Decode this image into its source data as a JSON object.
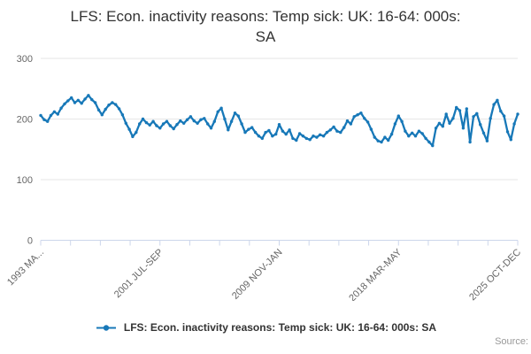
{
  "chart": {
    "title": "LFS: Econ. inactivity reasons: Temp sick: UK: 16-64: 000s: SA",
    "title_line1": "LFS: Econ. inactivity reasons: Temp sick: UK: 16-64: 000s:",
    "title_line2": "SA"
  },
  "legend": {
    "label": "LFS: Econ. inactivity reasons: Temp sick: UK: 16-64: 000s: SA"
  },
  "footer": {
    "source_label": "Source:"
  },
  "colors": {
    "series": "#1778b8",
    "grid": "#e6e6e6",
    "axis": "#ccd6eb",
    "tick_label": "#666666",
    "title": "#333333",
    "legend_text": "#333333",
    "source": "#999999",
    "background": "#ffffff"
  },
  "chart_data": {
    "type": "line",
    "title": "LFS: Econ. inactivity reasons: Temp sick: UK: 16-64: 000s: SA",
    "xlabel": "",
    "ylabel": "",
    "ylim": [
      0,
      300
    ],
    "y_ticks": [
      0,
      100,
      200,
      300
    ],
    "grid": "horizontal",
    "legend_position": "bottom-center",
    "x_minor_tick_count": 17,
    "x_tick_label_positions": [
      0,
      4,
      8,
      12,
      16
    ],
    "x_tick_labels": [
      "1993 MA...",
      "2001 JUL-SEP",
      "2009 NOV-JAN",
      "2018 MAR-MAY",
      "2025 OCT-DEC"
    ],
    "series": [
      {
        "name": "LFS: Econ. inactivity reasons: Temp sick: UK: 16-64: 000s: SA",
        "color": "#1778b8",
        "values": [
          206,
          199,
          196,
          206,
          212,
          208,
          218,
          225,
          230,
          235,
          227,
          231,
          226,
          233,
          239,
          232,
          227,
          215,
          207,
          216,
          223,
          227,
          224,
          217,
          207,
          193,
          183,
          171,
          178,
          192,
          200,
          194,
          190,
          196,
          189,
          185,
          192,
          196,
          189,
          184,
          191,
          197,
          193,
          199,
          204,
          197,
          193,
          199,
          201,
          192,
          185,
          196,
          212,
          218,
          200,
          182,
          196,
          210,
          205,
          192,
          178,
          183,
          186,
          178,
          172,
          168,
          178,
          181,
          172,
          175,
          191,
          180,
          175,
          182,
          168,
          165,
          176,
          172,
          168,
          166,
          172,
          170,
          174,
          172,
          178,
          182,
          187,
          180,
          178,
          186,
          197,
          192,
          204,
          207,
          210,
          201,
          195,
          183,
          170,
          164,
          162,
          170,
          165,
          175,
          192,
          205,
          196,
          180,
          172,
          177,
          172,
          180,
          176,
          168,
          162,
          156,
          185,
          193,
          188,
          208,
          193,
          201,
          219,
          214,
          185,
          217,
          162,
          204,
          209,
          191,
          177,
          164,
          201,
          224,
          231,
          213,
          205,
          179,
          166,
          192,
          208
        ]
      }
    ]
  }
}
